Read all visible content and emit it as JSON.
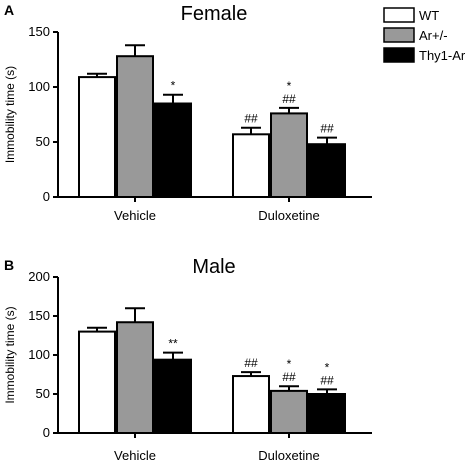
{
  "legend": [
    {
      "label": "WT",
      "color": "#ffffff"
    },
    {
      "label": "Ar+/-",
      "color": "#999999"
    },
    {
      "label": "Thy1-Ar",
      "color": "#000000"
    }
  ],
  "chart_data": [
    {
      "type": "bar",
      "panel": "A",
      "title": "Female",
      "ylabel": "Immobility time (s)",
      "xlabel": "",
      "ylim": [
        0,
        150
      ],
      "yticks": [
        0,
        50,
        100,
        150
      ],
      "categories": [
        "Vehicle",
        "Duloxetine"
      ],
      "legend_position": "top-right",
      "series": [
        {
          "name": "WT",
          "color": "#ffffff",
          "values": [
            109,
            57
          ],
          "errors": [
            3,
            6
          ],
          "annotations": [
            "",
            "##"
          ]
        },
        {
          "name": "Ar+/-",
          "color": "#999999",
          "values": [
            128,
            76
          ],
          "errors": [
            10,
            5
          ],
          "annotations": [
            "",
            "*\n##"
          ]
        },
        {
          "name": "Thy1-Ar",
          "color": "#000000",
          "values": [
            85,
            48
          ],
          "errors": [
            8,
            6
          ],
          "annotations": [
            "*",
            "##"
          ]
        }
      ]
    },
    {
      "type": "bar",
      "panel": "B",
      "title": "Male",
      "ylabel": "Immobility time (s)",
      "xlabel": "",
      "ylim": [
        0,
        200
      ],
      "yticks": [
        0,
        50,
        100,
        150,
        200
      ],
      "categories": [
        "Vehicle",
        "Duloxetine"
      ],
      "series": [
        {
          "name": "WT",
          "color": "#ffffff",
          "values": [
            130,
            73
          ],
          "errors": [
            5,
            5
          ],
          "annotations": [
            "",
            "##"
          ]
        },
        {
          "name": "Ar+/-",
          "color": "#999999",
          "values": [
            142,
            54
          ],
          "errors": [
            18,
            6
          ],
          "annotations": [
            "",
            "*\n##"
          ]
        },
        {
          "name": "Thy1-Ar",
          "color": "#000000",
          "values": [
            94,
            50
          ],
          "errors": [
            9,
            6
          ],
          "annotations": [
            "**",
            "*\n##"
          ]
        }
      ]
    }
  ]
}
